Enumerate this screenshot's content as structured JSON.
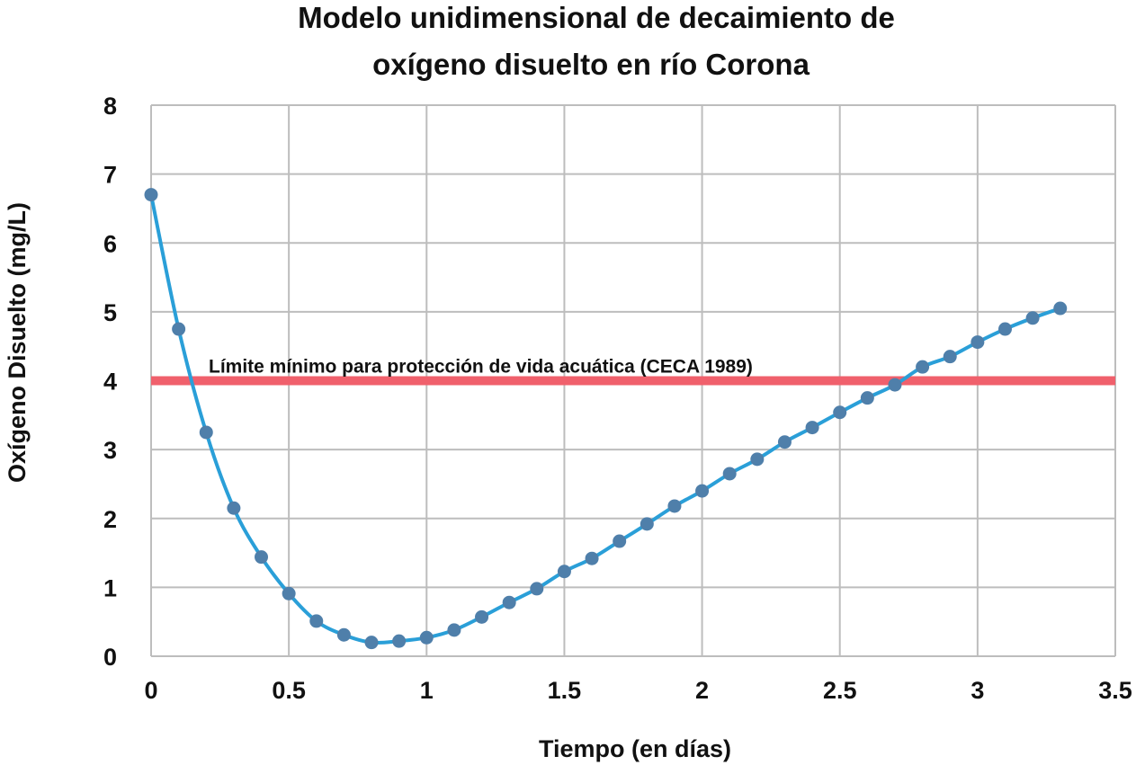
{
  "chart_data": {
    "type": "line",
    "title_lines": [
      "Modelo unidimensional de decaimiento de",
      "oxígeno disuelto en río Corona"
    ],
    "xlabel": "Tiempo (en días)",
    "ylabel": "Oxígeno Disuelto (mg/L)",
    "xlim": [
      0,
      3.5
    ],
    "ylim": [
      0,
      8
    ],
    "xticks": [
      "0",
      "0.5",
      "1",
      "1.5",
      "2",
      "2.5",
      "3",
      "3.5"
    ],
    "yticks": [
      "0",
      "1",
      "2",
      "3",
      "4",
      "5",
      "6",
      "7",
      "8"
    ],
    "grid": true,
    "series": [
      {
        "name": "Oxígeno disuelto",
        "color": "#2a9fd8",
        "marker_color": "#4f7faa",
        "x": [
          0,
          0.1,
          0.2,
          0.3,
          0.4,
          0.5,
          0.6,
          0.7,
          0.8,
          0.9,
          1.0,
          1.1,
          1.2,
          1.3,
          1.4,
          1.5,
          1.6,
          1.7,
          1.8,
          1.9,
          2.0,
          2.1,
          2.2,
          2.3,
          2.4,
          2.5,
          2.6,
          2.7,
          2.8,
          2.9,
          3.0,
          3.1,
          3.2,
          3.3
        ],
        "y": [
          6.7,
          4.75,
          3.25,
          2.15,
          1.44,
          0.91,
          0.51,
          0.31,
          0.2,
          0.22,
          0.27,
          0.38,
          0.57,
          0.78,
          0.98,
          1.23,
          1.42,
          1.67,
          1.92,
          2.18,
          2.4,
          2.65,
          2.86,
          3.11,
          3.32,
          3.54,
          3.75,
          3.94,
          4.2,
          4.35,
          4.56,
          4.75,
          4.91,
          5.05
        ]
      }
    ],
    "reference_line": {
      "y": 4,
      "color": "#f0606c",
      "label": "Límite mínimo para protección de vida acuática (CECA 1989)"
    }
  }
}
